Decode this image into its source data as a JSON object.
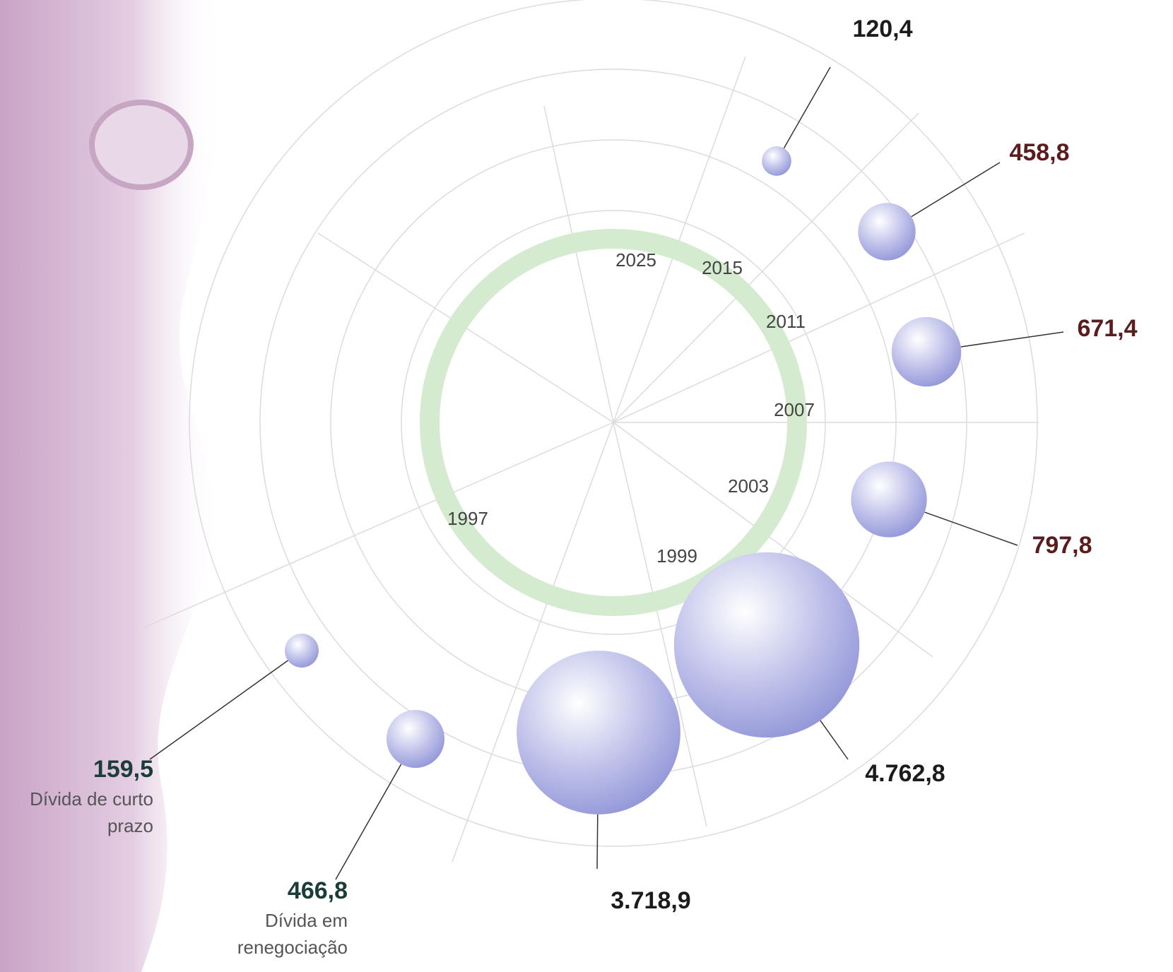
{
  "chart_data": {
    "type": "bubble",
    "categories": [
      null,
      null,
      null,
      null,
      null,
      null,
      "Dívida em renegociação",
      "Dívida de curto prazo"
    ],
    "values": [
      120.4,
      458.8,
      671.4,
      797.8,
      4762.8,
      3718.9,
      466.8,
      159.5
    ],
    "value_labels": [
      "120,4",
      "458,8",
      "671,4",
      "797,8",
      "4.762,8",
      "3.718,9",
      "466,8",
      "159,5"
    ],
    "label_colors": [
      "#1c1c1c",
      "#5a1c1c",
      "#5a1c1c",
      "#5a1c1c",
      "#1c1c1c",
      "#1c1c1c",
      "#1b3d3a",
      "#1b3d3a"
    ],
    "bubble_color": "#8f93d6",
    "ring_labels": [
      "2025",
      "2015",
      "2011",
      "2007",
      "2003",
      "1999",
      "1997"
    ]
  }
}
